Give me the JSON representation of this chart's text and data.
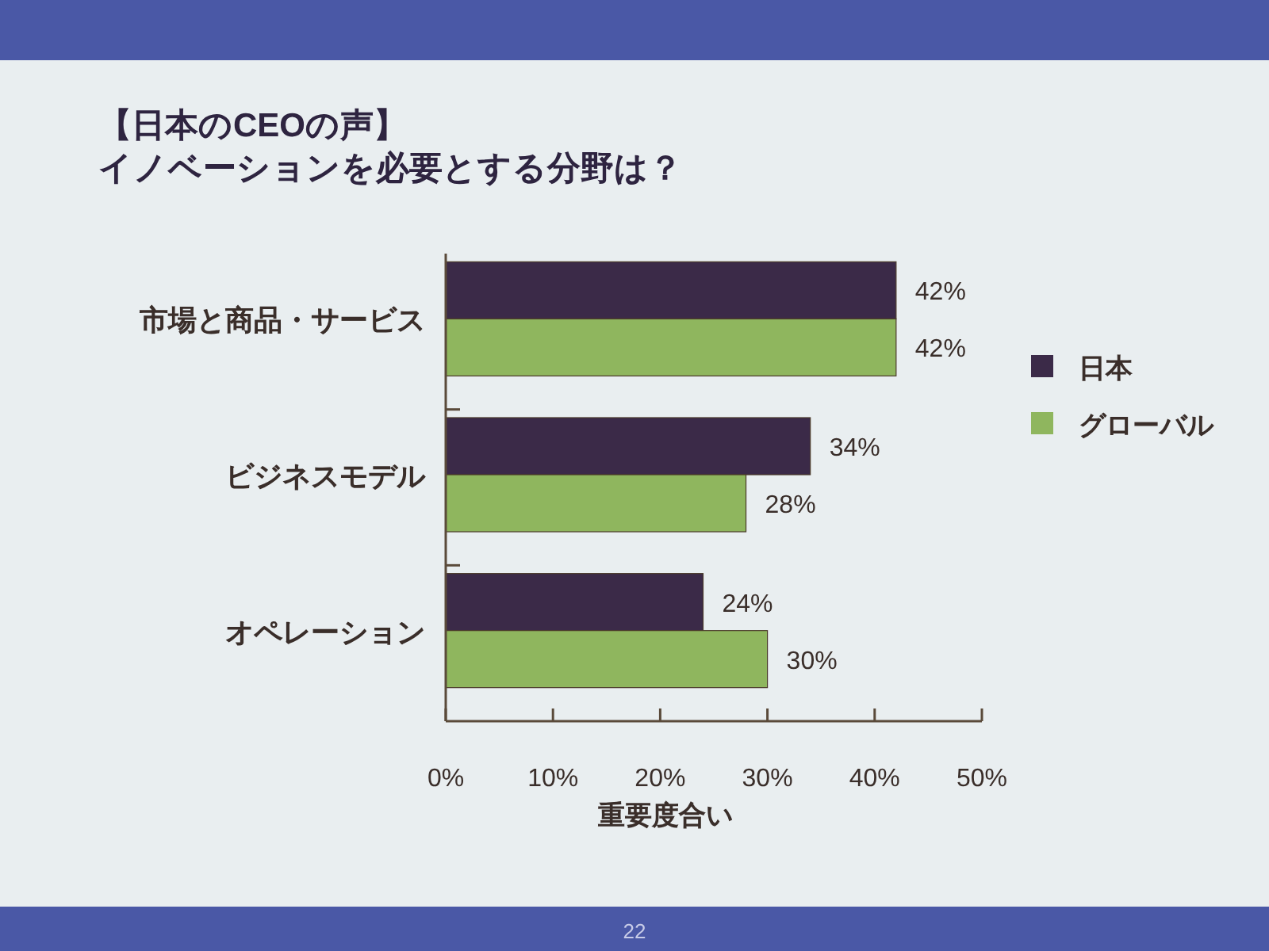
{
  "chart_data": {
    "type": "bar",
    "orientation": "horizontal",
    "title": "【日本のCEOの声】",
    "subtitle": "イノベーションを必要とする分野は？",
    "xlabel": "重要度合い",
    "categories": [
      "市場と商品・サービス",
      "ビジネスモデル",
      "オペレーション"
    ],
    "series": [
      {
        "name": "日本",
        "color": "#3b2a48",
        "values": [
          42,
          34,
          24
        ],
        "value_labels": [
          "42%",
          "34%",
          "24%"
        ]
      },
      {
        "name": "グローバル",
        "color": "#8fb65e",
        "values": [
          42,
          28,
          30
        ],
        "value_labels": [
          "42%",
          "28%",
          "30%"
        ]
      }
    ],
    "xlim": [
      0,
      50
    ],
    "xticks": [
      {
        "value": 0,
        "label": "0%"
      },
      {
        "value": 10,
        "label": "10%"
      },
      {
        "value": 20,
        "label": "20%"
      },
      {
        "value": 30,
        "label": "30%"
      },
      {
        "value": 40,
        "label": "40%"
      },
      {
        "value": 50,
        "label": "50%"
      }
    ],
    "legend": "right",
    "annotations": [
      "22"
    ]
  }
}
